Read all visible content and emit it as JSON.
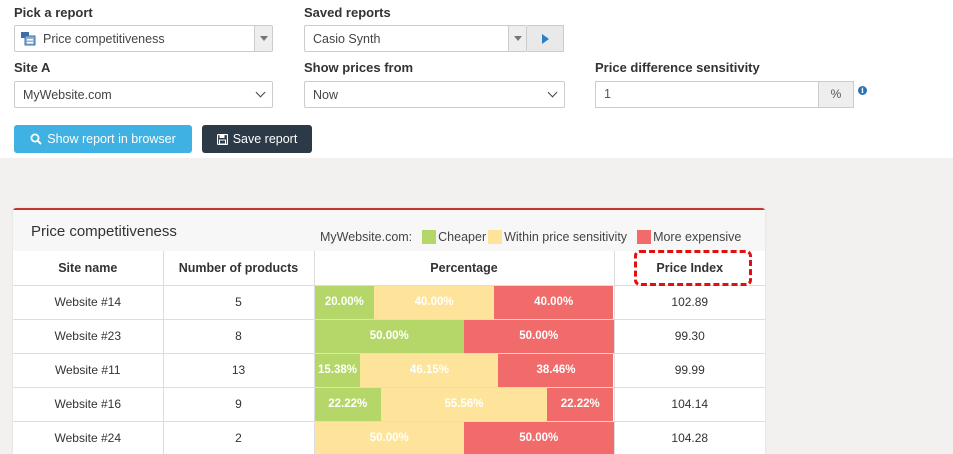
{
  "form": {
    "pick_report": {
      "label": "Pick a report",
      "value": "Price competitiveness"
    },
    "saved_reports": {
      "label": "Saved reports",
      "value": "Casio Synth"
    },
    "site_a": {
      "label": "Site A",
      "value": "MyWebsite.com"
    },
    "show_prices_from": {
      "label": "Show prices from",
      "value": "Now"
    },
    "sensitivity": {
      "label": "Price difference sensitivity",
      "value": "1",
      "unit": "%"
    },
    "show_button": "Show report in browser",
    "save_button": "Save report"
  },
  "report": {
    "title": "Price competitiveness",
    "legend": {
      "prefix": "MyWebsite.com:",
      "items": [
        {
          "label": "Cheaper",
          "color": "#b5d76a"
        },
        {
          "label": "Within price sensitivity",
          "color": "#fde49a"
        },
        {
          "label": "More expensive",
          "color": "#f26b6b"
        }
      ]
    },
    "columns": [
      "Site name",
      "Number of products",
      "Percentage",
      "Price Index"
    ],
    "rows": [
      {
        "site": "Website #14",
        "products": "5",
        "cheaper": "20.00%",
        "within": "40.00%",
        "expensive": "40.00%",
        "index": "102.89"
      },
      {
        "site": "Website #23",
        "products": "8",
        "cheaper": "50.00%",
        "within": "",
        "expensive": "50.00%",
        "index": "99.30"
      },
      {
        "site": "Website #11",
        "products": "13",
        "cheaper": "15.38%",
        "within": "46.15%",
        "expensive": "38.46%",
        "index": "99.99"
      },
      {
        "site": "Website #16",
        "products": "9",
        "cheaper": "22.22%",
        "within": "55.56%",
        "expensive": "22.22%",
        "index": "104.14"
      },
      {
        "site": "Website #24",
        "products": "2",
        "cheaper": "",
        "within": "50.00%",
        "expensive": "50.00%",
        "index": "104.28"
      }
    ]
  },
  "icons": {
    "report": "report-icon",
    "search": "search-icon",
    "save": "floppy-disk-icon",
    "info": "info-icon",
    "play": "play-icon"
  }
}
